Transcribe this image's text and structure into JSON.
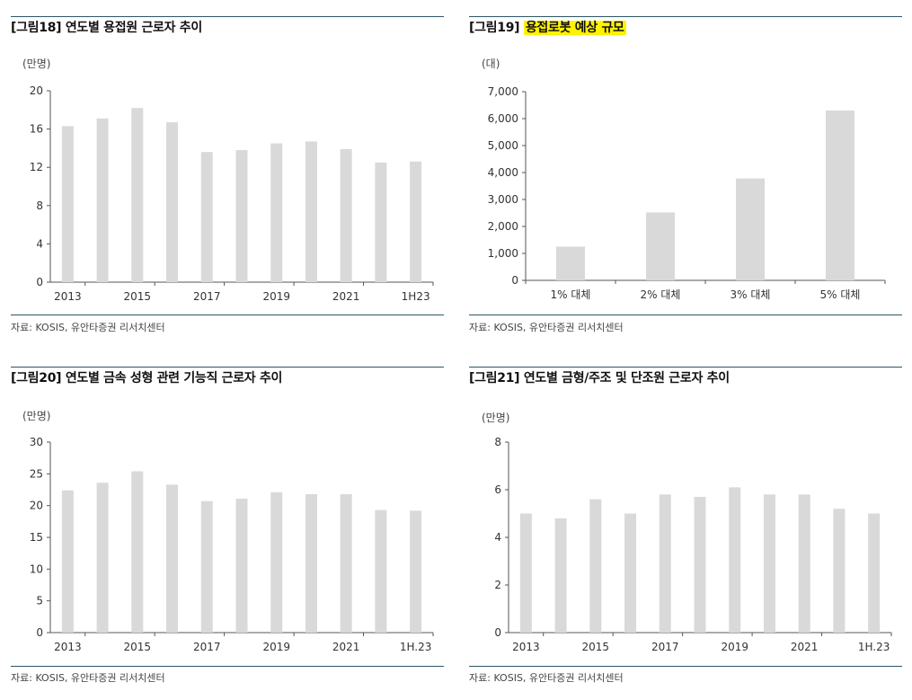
{
  "charts": [
    {
      "title": "[그림18] 연도별 용접원 근로자 추이",
      "title_highlight": "",
      "unit": "(만명)",
      "source": "자료: KOSIS, 유안타증권 리서치센터"
    },
    {
      "title": "[그림19]",
      "title_highlight": "용접로봇 예상 규모",
      "unit": "(대)",
      "source": "자료: KOSIS, 유안타증권 리서치센터"
    },
    {
      "title": "[그림20] 연도별 금속 성형 관련 기능직 근로자 추이",
      "title_highlight": "",
      "unit": "(만명)",
      "source": "자료: KOSIS, 유안타증권 리서치센터"
    },
    {
      "title": "[그림21] 연도별 금형/주조 및 단조원 근로자 추이",
      "title_highlight": "",
      "unit": "(만명)",
      "source": "자료: KOSIS, 유안타증권 리서치센터"
    }
  ],
  "colors": {
    "bar": "#d9d9d9",
    "rule": "#2f5566",
    "highlight": "#fff200"
  },
  "chart_data": [
    {
      "type": "bar",
      "categories": [
        "2013",
        "2014",
        "2015",
        "2016",
        "2017",
        "2018",
        "2019",
        "2020",
        "2021",
        "2022",
        "1H23"
      ],
      "tick_labels": [
        "2013",
        "2015",
        "2017",
        "2019",
        "2021",
        "1H23"
      ],
      "tick_indices": [
        0,
        2,
        4,
        6,
        8,
        10
      ],
      "values": [
        16.3,
        17.1,
        18.2,
        16.7,
        13.6,
        13.8,
        14.5,
        14.7,
        13.9,
        12.5,
        12.6
      ],
      "ylim": [
        0,
        20
      ],
      "yticks": [
        0,
        4,
        8,
        12,
        16,
        20
      ],
      "ytick_labels": [
        "0",
        "4",
        "8",
        "12",
        "16",
        "20"
      ],
      "grid": false
    },
    {
      "type": "bar",
      "categories": [
        "1% 대체",
        "2% 대체",
        "3% 대체",
        "5% 대체"
      ],
      "tick_labels": [
        "1% 대체",
        "2% 대체",
        "3% 대체",
        "5% 대체"
      ],
      "tick_indices": [
        0,
        1,
        2,
        3
      ],
      "values": [
        1250,
        2520,
        3780,
        6300
      ],
      "ylim": [
        0,
        7000
      ],
      "yticks": [
        0,
        1000,
        2000,
        3000,
        4000,
        5000,
        6000,
        7000
      ],
      "ytick_labels": [
        "0",
        "1,000",
        "2,000",
        "3,000",
        "4,000",
        "5,000",
        "6,000",
        "7,000"
      ],
      "grid": false
    },
    {
      "type": "bar",
      "categories": [
        "2013",
        "2014",
        "2015",
        "2016",
        "2017",
        "2018",
        "2019",
        "2020",
        "2021",
        "2022",
        "1H.23"
      ],
      "tick_labels": [
        "2013",
        "2015",
        "2017",
        "2019",
        "2021",
        "1H.23"
      ],
      "tick_indices": [
        0,
        2,
        4,
        6,
        8,
        10
      ],
      "values": [
        22.4,
        23.6,
        25.4,
        23.3,
        20.7,
        21.1,
        22.1,
        21.8,
        21.8,
        19.3,
        19.2
      ],
      "ylim": [
        0,
        30
      ],
      "yticks": [
        0,
        5,
        10,
        15,
        20,
        25,
        30
      ],
      "ytick_labels": [
        "0",
        "5",
        "10",
        "15",
        "20",
        "25",
        "30"
      ],
      "grid": false
    },
    {
      "type": "bar",
      "categories": [
        "2013",
        "2014",
        "2015",
        "2016",
        "2017",
        "2018",
        "2019",
        "2020",
        "2021",
        "2022",
        "1H.23"
      ],
      "tick_labels": [
        "2013",
        "2015",
        "2017",
        "2019",
        "2021",
        "1H.23"
      ],
      "tick_indices": [
        0,
        2,
        4,
        6,
        8,
        10
      ],
      "values": [
        5.0,
        4.8,
        5.6,
        5.0,
        5.8,
        5.7,
        6.1,
        5.8,
        5.8,
        5.2,
        5.0
      ],
      "ylim": [
        0,
        8
      ],
      "yticks": [
        0,
        2,
        4,
        6,
        8
      ],
      "ytick_labels": [
        "0",
        "2",
        "4",
        "6",
        "8"
      ],
      "grid": false
    }
  ]
}
